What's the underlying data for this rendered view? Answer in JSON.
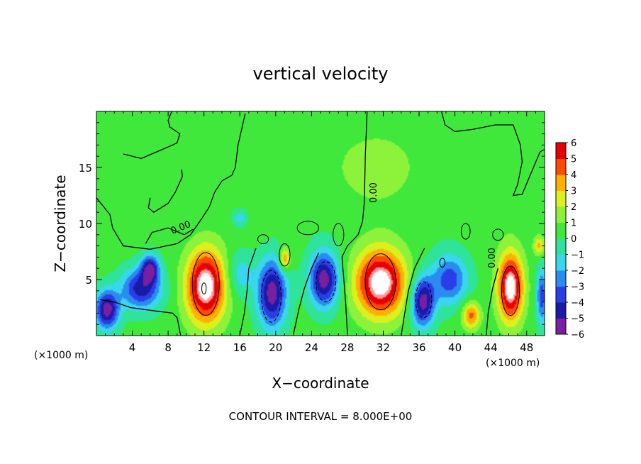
{
  "chart_data": {
    "type": "heatmap",
    "title": "vertical velocity",
    "xlabel": "X−coordinate",
    "ylabel": "Z−coordinate",
    "x_unit_left": "(×1000 m)",
    "x_unit_right": "(×1000 m)",
    "xlim": [
      0,
      50
    ],
    "ylim": [
      0,
      20
    ],
    "x_ticks": [
      4,
      8,
      12,
      16,
      20,
      24,
      28,
      32,
      36,
      40,
      44,
      48
    ],
    "y_ticks": [
      5,
      10,
      15
    ],
    "contour_interval_text": "CONTOUR INTERVAL = 8.000E+00",
    "contour_labels": [
      "0.00",
      "0.00",
      "0.00"
    ],
    "colorbar": {
      "ticks": [
        "6",
        "5",
        "4",
        "3",
        "2",
        "1",
        "0",
        "−1",
        "−2",
        "−3",
        "−4",
        "−5",
        "−6"
      ],
      "range": [
        -6,
        6
      ]
    },
    "blobs": [
      {
        "x": 5.0,
        "y": 4.2,
        "v": -5,
        "rx": 2.2,
        "ry": 1.8
      },
      {
        "x": 1.2,
        "y": 2.3,
        "v": -6,
        "rx": 1.3,
        "ry": 1.7
      },
      {
        "x": 6.0,
        "y": 6.0,
        "v": -5,
        "rx": 1.0,
        "ry": 1.2
      },
      {
        "x": 12.2,
        "y": 4.4,
        "v": 7,
        "rx": 2.2,
        "ry": 3.3
      },
      {
        "x": 19.6,
        "y": 3.8,
        "v": -6,
        "rx": 1.6,
        "ry": 3.0
      },
      {
        "x": 21.0,
        "y": 6.8,
        "v": 4,
        "rx": 0.6,
        "ry": 1.0
      },
      {
        "x": 25.4,
        "y": 5.0,
        "v": -6,
        "rx": 1.6,
        "ry": 2.4
      },
      {
        "x": 31.7,
        "y": 4.7,
        "v": 7,
        "rx": 2.8,
        "ry": 3.0
      },
      {
        "x": 36.4,
        "y": 3.0,
        "v": -6,
        "rx": 1.3,
        "ry": 2.2
      },
      {
        "x": 39.4,
        "y": 5.0,
        "v": -4,
        "rx": 2.0,
        "ry": 2.2
      },
      {
        "x": 41.8,
        "y": 1.8,
        "v": 4,
        "rx": 1.0,
        "ry": 1.2
      },
      {
        "x": 46.2,
        "y": 4.3,
        "v": 7,
        "rx": 1.4,
        "ry": 3.0
      },
      {
        "x": 49.4,
        "y": 8.0,
        "v": 3,
        "rx": 0.6,
        "ry": 0.9
      },
      {
        "x": 49.7,
        "y": 3.5,
        "v": -4,
        "rx": 0.6,
        "ry": 2.5
      },
      {
        "x": 16.0,
        "y": 5.5,
        "v": -2,
        "rx": 1.5,
        "ry": 2.0
      },
      {
        "x": 16.0,
        "y": 10.5,
        "v": -2,
        "rx": 0.8,
        "ry": 0.8
      },
      {
        "x": 31.0,
        "y": 15.0,
        "v": 1,
        "rx": 6.0,
        "ry": 3.0
      }
    ],
    "contours_zero": [
      [
        [
          0,
          12.3
        ],
        [
          1.5,
          10.8
        ],
        [
          1.8,
          9.6
        ],
        [
          3.0,
          8.0
        ],
        [
          6.0,
          7.7
        ],
        [
          9.0,
          8.2
        ],
        [
          10.5,
          9.0
        ],
        [
          11.8,
          10.5
        ],
        [
          12.6,
          11.5
        ],
        [
          13.2,
          12.8
        ],
        [
          14.0,
          13.8
        ],
        [
          15.1,
          14.3
        ],
        [
          15.5,
          15.0
        ],
        [
          15.8,
          17.0
        ],
        [
          16.6,
          19.8
        ]
      ],
      [
        [
          3.0,
          16.2
        ],
        [
          5.0,
          15.8
        ],
        [
          8.5,
          17.0
        ],
        [
          9.0,
          17.2
        ],
        [
          9.3,
          18.0
        ],
        [
          8.2,
          18.6
        ],
        [
          8.0,
          19.2
        ],
        [
          8.4,
          20.0
        ]
      ],
      [
        [
          6.0,
          12.3
        ],
        [
          5.8,
          11.4
        ],
        [
          6.4,
          11.0
        ],
        [
          8.0,
          11.8
        ],
        [
          8.8,
          12.8
        ],
        [
          9.6,
          14.2
        ],
        [
          9.5,
          14.8
        ]
      ],
      [
        [
          5.5,
          8.2
        ],
        [
          6.2,
          9.2
        ],
        [
          8.0,
          9.6
        ],
        [
          9.8,
          9.0
        ],
        [
          10.8,
          9.5
        ]
      ],
      [
        [
          30.2,
          20.0
        ],
        [
          30.0,
          16.0
        ],
        [
          29.9,
          12.0
        ],
        [
          29.7,
          10.2
        ],
        [
          29.2,
          9.0
        ],
        [
          28.0,
          8.0
        ],
        [
          27.4,
          7.0
        ],
        [
          27.6,
          5.0
        ],
        [
          27.8,
          3.0
        ],
        [
          28.0,
          0.2
        ]
      ],
      [
        [
          38.5,
          20.0
        ],
        [
          38.9,
          18.8
        ],
        [
          40.0,
          18.2
        ],
        [
          42.0,
          18.4
        ],
        [
          44.5,
          18.8
        ],
        [
          46.5,
          18.8
        ],
        [
          47.3,
          17.0
        ],
        [
          47.5,
          15.5
        ],
        [
          47.0,
          13.5
        ],
        [
          46.5,
          12.5
        ],
        [
          47.5,
          12.6
        ],
        [
          48.5,
          14.5
        ],
        [
          49.5,
          16.4
        ],
        [
          50.0,
          16.6
        ]
      ],
      [
        [
          0.4,
          3.2
        ],
        [
          2.0,
          3.0
        ],
        [
          3.8,
          2.5
        ],
        [
          6.5,
          2.2
        ],
        [
          8.5,
          2.0
        ],
        [
          9.0,
          1.6
        ],
        [
          9.4,
          0.0
        ]
      ],
      [
        [
          16.0,
          0.0
        ],
        [
          16.5,
          2.0
        ],
        [
          16.8,
          4.0
        ],
        [
          17.0,
          6.0
        ],
        [
          17.8,
          7.8
        ]
      ],
      [
        [
          22.0,
          0.2
        ],
        [
          22.6,
          2.4
        ],
        [
          23.2,
          4.2
        ],
        [
          24.0,
          6.0
        ],
        [
          24.8,
          7.4
        ]
      ],
      [
        [
          34.0,
          0.0
        ],
        [
          34.4,
          2.0
        ],
        [
          34.8,
          4.0
        ],
        [
          35.5,
          6.0
        ],
        [
          36.6,
          7.8
        ]
      ],
      [
        [
          43.5,
          0.0
        ],
        [
          43.7,
          2.0
        ],
        [
          44.2,
          4.2
        ],
        [
          44.8,
          6.0
        ]
      ]
    ],
    "contours_closed": [
      {
        "x": 12.2,
        "y": 4.6,
        "rx": 1.5,
        "ry": 2.8,
        "dash": false
      },
      {
        "x": 12.0,
        "y": 4.2,
        "rx": 0.25,
        "ry": 0.5,
        "dash": false
      },
      {
        "x": 19.5,
        "y": 3.5,
        "rx": 1.1,
        "ry": 2.3,
        "dash": true
      },
      {
        "x": 25.6,
        "y": 4.8,
        "rx": 1.1,
        "ry": 1.8,
        "dash": true
      },
      {
        "x": 31.7,
        "y": 4.8,
        "rx": 1.7,
        "ry": 2.5,
        "dash": false
      },
      {
        "x": 36.5,
        "y": 3.2,
        "rx": 0.9,
        "ry": 1.6,
        "dash": true
      },
      {
        "x": 46.2,
        "y": 4.0,
        "rx": 1.0,
        "ry": 2.2,
        "dash": false
      },
      {
        "x": 21.0,
        "y": 7.2,
        "rx": 0.6,
        "ry": 1.0,
        "dash": false
      },
      {
        "x": 27.0,
        "y": 9.0,
        "rx": 0.6,
        "ry": 1.0,
        "dash": false
      },
      {
        "x": 18.6,
        "y": 8.6,
        "rx": 0.6,
        "ry": 0.4,
        "dash": false
      },
      {
        "x": 23.6,
        "y": 9.6,
        "rx": 1.2,
        "ry": 0.6,
        "dash": false
      },
      {
        "x": 41.2,
        "y": 9.3,
        "rx": 0.5,
        "ry": 0.7,
        "dash": false
      },
      {
        "x": 44.8,
        "y": 9.0,
        "rx": 0.6,
        "ry": 0.5,
        "dash": false
      },
      {
        "x": 38.6,
        "y": 6.5,
        "rx": 0.3,
        "ry": 0.4,
        "dash": false
      }
    ]
  }
}
